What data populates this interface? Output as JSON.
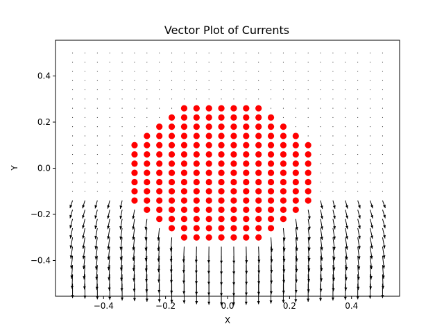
{
  "chart_data": {
    "type": "scatter",
    "title": "Vector Plot of Currents",
    "xlabel": "X",
    "ylabel": "Y",
    "xlim": [
      -0.555,
      0.555
    ],
    "ylim": [
      -0.555,
      0.555
    ],
    "xticks": [
      -0.4,
      -0.2,
      0.0,
      0.2,
      0.4
    ],
    "xtick_labels": [
      "−0.4",
      "−0.2",
      "0.0",
      "0.2",
      "0.4"
    ],
    "yticks": [
      -0.4,
      -0.2,
      0.0,
      0.2,
      0.4
    ],
    "ytick_labels": [
      "−0.4",
      "−0.2",
      "0.0",
      "0.2",
      "0.4"
    ],
    "grid": false,
    "legend": "none",
    "colors": {
      "points": "#ff0000",
      "arrows": "#000000"
    },
    "quiver_grid": {
      "x_values": [
        -0.5,
        -0.46,
        -0.42,
        -0.38,
        -0.34,
        -0.3,
        -0.26,
        -0.22,
        -0.18,
        -0.14,
        -0.1,
        -0.06,
        -0.02,
        0.02,
        0.06,
        0.1,
        0.14,
        0.18,
        0.22,
        0.26,
        0.3,
        0.34,
        0.38,
        0.42,
        0.46,
        0.5
      ],
      "y_values": [
        -0.5,
        -0.46,
        -0.42,
        -0.38,
        -0.34,
        -0.3,
        -0.26,
        -0.22,
        -0.18,
        -0.14,
        -0.1,
        -0.06,
        -0.02,
        0.02,
        0.06,
        0.1,
        0.14,
        0.18,
        0.22,
        0.26,
        0.3,
        0.34,
        0.38,
        0.42,
        0.46,
        0.5
      ]
    },
    "points": {
      "rows": [
        {
          "y": 0.26,
          "x": [
            -0.14,
            -0.1,
            -0.06,
            -0.02,
            0.02,
            0.06,
            0.1
          ]
        },
        {
          "y": 0.22,
          "x": [
            -0.18,
            -0.14,
            -0.1,
            -0.06,
            -0.02,
            0.02,
            0.06,
            0.1,
            0.14
          ]
        },
        {
          "y": 0.18,
          "x": [
            -0.22,
            -0.18,
            -0.14,
            -0.1,
            -0.06,
            -0.02,
            0.02,
            0.06,
            0.1,
            0.14,
            0.18
          ]
        },
        {
          "y": 0.14,
          "x": [
            -0.26,
            -0.22,
            -0.18,
            -0.14,
            -0.1,
            -0.06,
            -0.02,
            0.02,
            0.06,
            0.1,
            0.14,
            0.18,
            0.22
          ]
        },
        {
          "y": 0.1,
          "x": [
            -0.3,
            -0.26,
            -0.22,
            -0.18,
            -0.14,
            -0.1,
            -0.06,
            -0.02,
            0.02,
            0.06,
            0.1,
            0.14,
            0.18,
            0.22,
            0.26
          ]
        },
        {
          "y": 0.06,
          "x": [
            -0.3,
            -0.26,
            -0.22,
            -0.18,
            -0.14,
            -0.1,
            -0.06,
            -0.02,
            0.02,
            0.06,
            0.1,
            0.14,
            0.18,
            0.22,
            0.26
          ]
        },
        {
          "y": 0.02,
          "x": [
            -0.3,
            -0.26,
            -0.22,
            -0.18,
            -0.14,
            -0.1,
            -0.06,
            -0.02,
            0.02,
            0.06,
            0.1,
            0.14,
            0.18,
            0.22,
            0.26
          ]
        },
        {
          "y": -0.02,
          "x": [
            -0.3,
            -0.26,
            -0.22,
            -0.18,
            -0.14,
            -0.1,
            -0.06,
            -0.02,
            0.02,
            0.06,
            0.1,
            0.14,
            0.18,
            0.22,
            0.26
          ]
        },
        {
          "y": -0.06,
          "x": [
            -0.3,
            -0.26,
            -0.22,
            -0.18,
            -0.14,
            -0.1,
            -0.06,
            -0.02,
            0.02,
            0.06,
            0.1,
            0.14,
            0.18,
            0.22,
            0.26
          ]
        },
        {
          "y": -0.1,
          "x": [
            -0.3,
            -0.26,
            -0.22,
            -0.18,
            -0.14,
            -0.1,
            -0.06,
            -0.02,
            0.02,
            0.06,
            0.1,
            0.14,
            0.18,
            0.22,
            0.26
          ]
        },
        {
          "y": -0.14,
          "x": [
            -0.3,
            -0.26,
            -0.22,
            -0.18,
            -0.14,
            -0.1,
            -0.06,
            -0.02,
            0.02,
            0.06,
            0.1,
            0.14,
            0.18,
            0.22,
            0.26
          ]
        },
        {
          "y": -0.18,
          "x": [
            -0.26,
            -0.22,
            -0.18,
            -0.14,
            -0.1,
            -0.06,
            -0.02,
            0.02,
            0.06,
            0.1,
            0.14,
            0.18,
            0.22
          ]
        },
        {
          "y": -0.22,
          "x": [
            -0.22,
            -0.18,
            -0.14,
            -0.1,
            -0.06,
            -0.02,
            0.02,
            0.06,
            0.1,
            0.14,
            0.18
          ]
        },
        {
          "y": -0.26,
          "x": [
            -0.18,
            -0.14,
            -0.1,
            -0.06,
            -0.02,
            0.02,
            0.06,
            0.1,
            0.14
          ]
        },
        {
          "y": -0.3,
          "x": [
            -0.14,
            -0.1,
            -0.06,
            -0.02,
            0.02,
            0.06,
            0.1
          ]
        }
      ]
    }
  }
}
